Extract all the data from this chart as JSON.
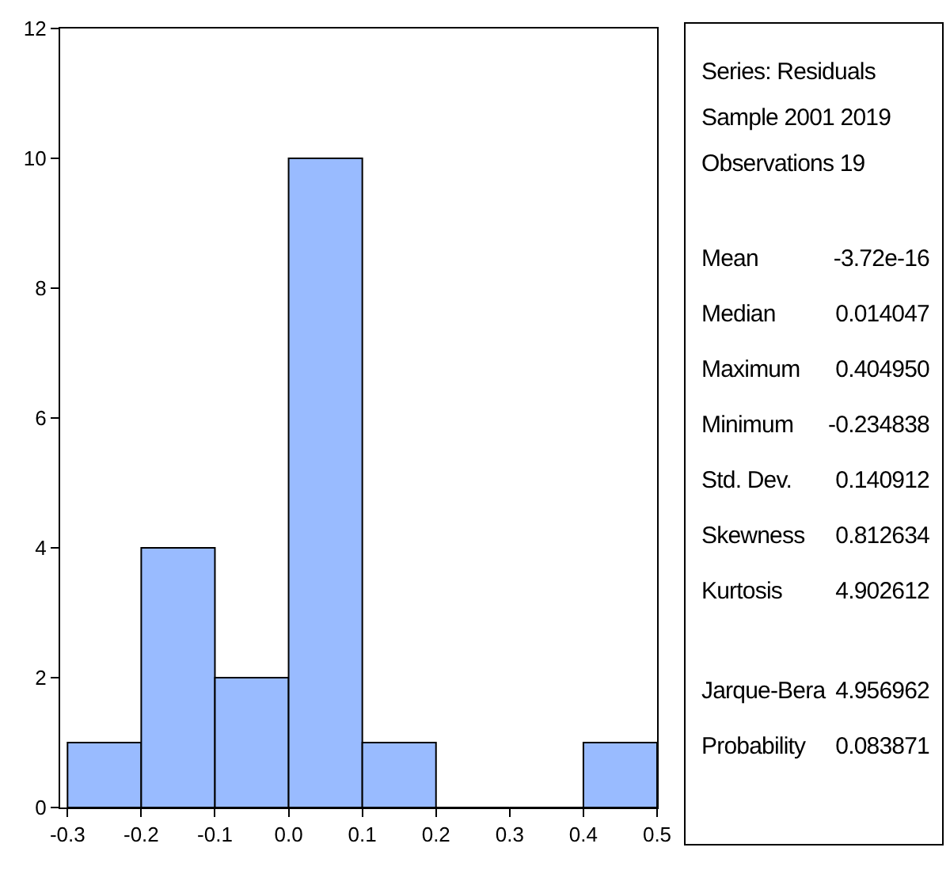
{
  "chart_data": [
    {
      "type": "histogram",
      "bins": [
        -0.3,
        -0.2,
        -0.1,
        0.0,
        0.1,
        0.2,
        0.3,
        0.4,
        0.5
      ],
      "values": [
        1,
        4,
        2,
        10,
        1,
        0,
        0,
        1
      ],
      "color": "#99bbff",
      "xlim": [
        -0.31,
        0.5
      ],
      "ylim": [
        0,
        12
      ],
      "xticks": [
        {
          "value": -0.3,
          "label": "-0.3"
        },
        {
          "value": -0.2,
          "label": "-0.2"
        },
        {
          "value": -0.1,
          "label": "-0.1"
        },
        {
          "value": 0.0,
          "label": "0.0"
        },
        {
          "value": 0.1,
          "label": "0.1"
        },
        {
          "value": 0.2,
          "label": "0.2"
        },
        {
          "value": 0.3,
          "label": "0.3"
        },
        {
          "value": 0.4,
          "label": "0.4"
        },
        {
          "value": 0.5,
          "label": "0.5"
        }
      ],
      "yticks": [
        0,
        2,
        4,
        6,
        8,
        10,
        12
      ],
      "grid": false
    },
    {
      "type": "other",
      "annotations": [
        "Series: Residuals",
        "Sample 2001 2019",
        "Observations 19"
      ],
      "categories": [
        "Mean",
        "Median",
        "Maximum",
        "Minimum",
        "Std. Dev.",
        "Skewness",
        "Kurtosis",
        "Jarque-Bera",
        "Probability"
      ],
      "value_labels": [
        "-3.72e-16",
        "0.014047",
        "0.404950",
        "-0.234838",
        "0.140912",
        "0.812634",
        "4.902612",
        "4.956962",
        "0.083871"
      ]
    }
  ]
}
